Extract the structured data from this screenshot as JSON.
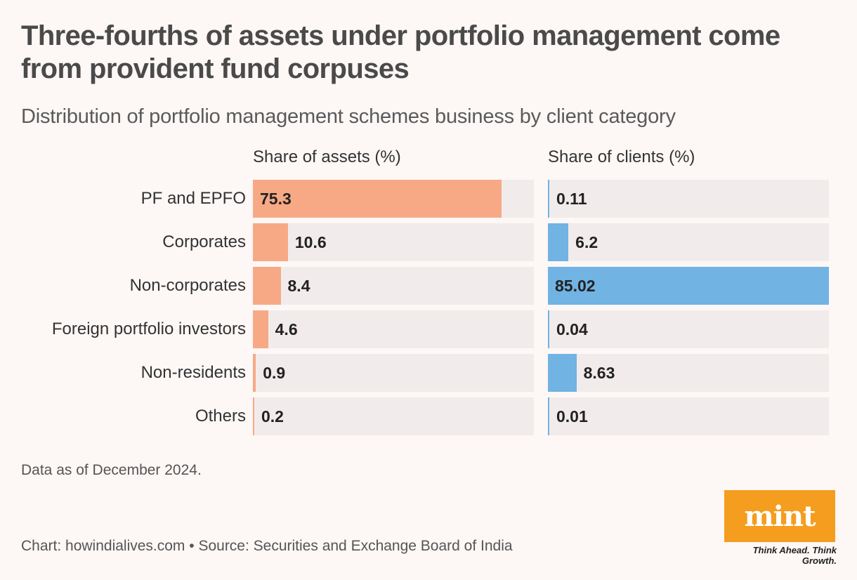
{
  "title": "Three-fourths of assets under portfolio management come from provident fund corpuses",
  "subtitle": "Distribution of portfolio management schemes business by client category",
  "chart_data": {
    "type": "bar",
    "categories": [
      "PF and EPFO",
      "Corporates",
      "Non-corporates",
      "Foreign portfolio investors",
      "Non-residents",
      "Others"
    ],
    "panels": [
      {
        "title": "Share of assets (%)",
        "color": "#f7a985",
        "values": [
          "75.3",
          "10.6",
          "8.4",
          "4.6",
          "0.9",
          "0.2"
        ],
        "xlim": [
          0,
          85.02
        ]
      },
      {
        "title": "Share of clients (%)",
        "color": "#71b3e3",
        "values": [
          "0.11",
          "6.2",
          "85.02",
          "0.04",
          "8.63",
          "0.01"
        ],
        "xlim": [
          0,
          85.02
        ]
      }
    ]
  },
  "note": "Data as of December 2024.",
  "source": "Chart: howindialives.com • Source: Securities and Exchange Board of India",
  "logo": {
    "word": "mint",
    "tagline": "Think Ahead. Think Growth.",
    "color": "#f59d1f"
  }
}
